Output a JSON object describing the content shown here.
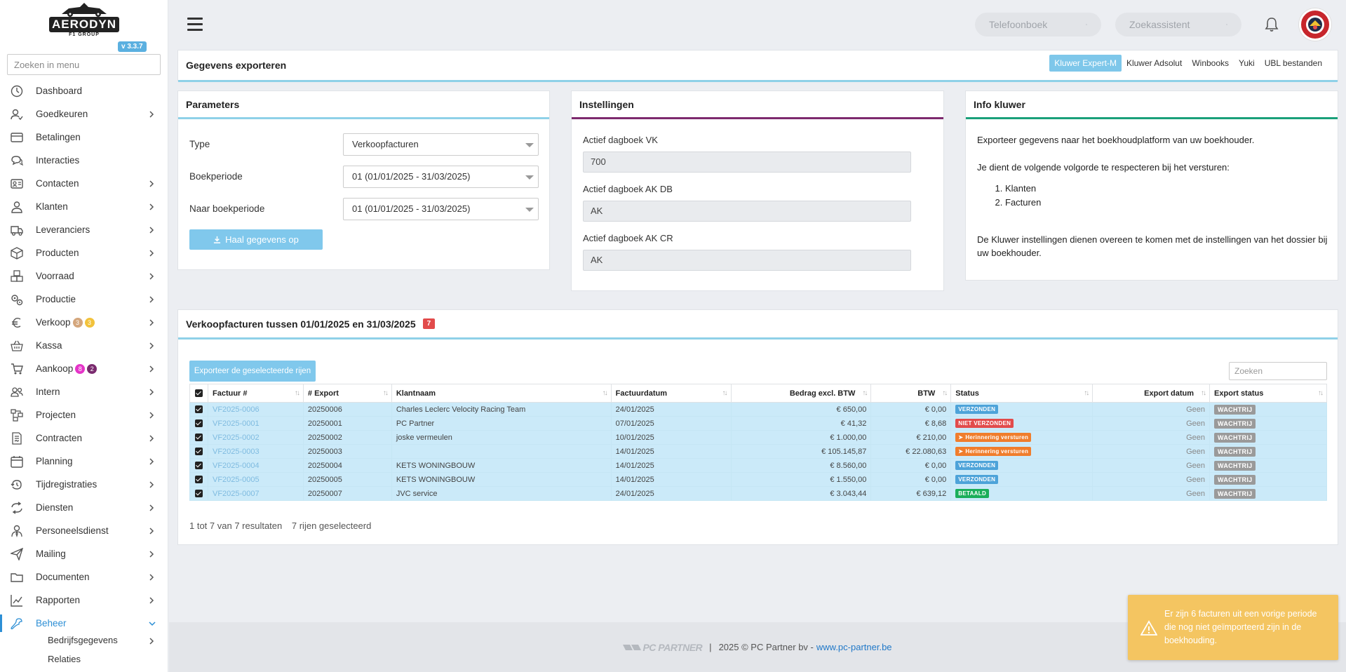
{
  "sidebar": {
    "logo_text": "AERODYN",
    "logo_sub": "F1 GROUP",
    "version": "v 3.3.7",
    "search_placeholder": "Zoeken in menu",
    "items": [
      {
        "label": "Dashboard",
        "icon": "dashboard-icon",
        "chevron": false
      },
      {
        "label": "Goedkeuren",
        "icon": "user-check-icon",
        "chevron": true
      },
      {
        "label": "Betalingen",
        "icon": "credit-card-icon",
        "chevron": false
      },
      {
        "label": "Interacties",
        "icon": "chat-icon",
        "chevron": false
      },
      {
        "label": "Contacten",
        "icon": "contact-card-icon",
        "chevron": true
      },
      {
        "label": "Klanten",
        "icon": "user-icon",
        "chevron": true
      },
      {
        "label": "Leveranciers",
        "icon": "truck-icon",
        "chevron": true
      },
      {
        "label": "Producten",
        "icon": "box-icon",
        "chevron": true
      },
      {
        "label": "Voorraad",
        "icon": "boxes-icon",
        "chevron": true
      },
      {
        "label": "Productie",
        "icon": "gears-icon",
        "chevron": true
      },
      {
        "label": "Verkoop",
        "icon": "euro-icon",
        "chevron": true,
        "badges": [
          {
            "value": "3",
            "color": "#d4a67c"
          },
          {
            "value": "3",
            "color": "#f2c23b"
          }
        ]
      },
      {
        "label": "Kassa",
        "icon": "basket-icon",
        "chevron": true
      },
      {
        "label": "Aankoop",
        "icon": "cart-icon",
        "chevron": true,
        "badges": [
          {
            "value": "8",
            "color": "#e534c8"
          },
          {
            "value": "2",
            "color": "#7a2a6e"
          }
        ]
      },
      {
        "label": "Intern",
        "icon": "users-icon",
        "chevron": true
      },
      {
        "label": "Projecten",
        "icon": "project-icon",
        "chevron": true
      },
      {
        "label": "Contracten",
        "icon": "contract-icon",
        "chevron": true
      },
      {
        "label": "Planning",
        "icon": "calendar-icon",
        "chevron": true
      },
      {
        "label": "Tijdregistraties",
        "icon": "history-icon",
        "chevron": true
      },
      {
        "label": "Diensten",
        "icon": "refresh-icon",
        "chevron": true
      },
      {
        "label": "Personeelsdienst",
        "icon": "person-tie-icon",
        "chevron": true
      },
      {
        "label": "Mailing",
        "icon": "send-icon",
        "chevron": true
      },
      {
        "label": "Documenten",
        "icon": "folder-icon",
        "chevron": true
      },
      {
        "label": "Rapporten",
        "icon": "chart-line-icon",
        "chevron": true
      },
      {
        "label": "Beheer",
        "icon": "wrench-icon",
        "chevron": true,
        "active": true
      }
    ],
    "subitems": [
      {
        "label": "Bedrijfsgegevens"
      },
      {
        "label": "Relaties"
      }
    ]
  },
  "topbar": {
    "search1_placeholder": "Telefoonboek",
    "search2_placeholder": "Zoekassistent"
  },
  "export": {
    "title": "Gegevens exporteren",
    "tabs": [
      "Kluwer Expert-M",
      "Kluwer Adsolut",
      "Winbooks",
      "Yuki",
      "UBL bestanden"
    ],
    "active_tab": 0
  },
  "parameters": {
    "title": "Parameters",
    "type_label": "Type",
    "type_value": "Verkoopfacturen",
    "boekperiode_label": "Boekperiode",
    "boekperiode_value": "01 (01/01/2025 - 31/03/2025)",
    "naar_label": "Naar boekperiode",
    "naar_value": "01 (01/01/2025 - 31/03/2025)",
    "button": "Haal gegevens op"
  },
  "instellingen": {
    "title": "Instellingen",
    "fields": [
      {
        "label": "Actief dagboek VK",
        "value": "700"
      },
      {
        "label": "Actief dagboek AK DB",
        "value": "AK"
      },
      {
        "label": "Actief dagboek AK CR",
        "value": "AK"
      }
    ]
  },
  "info": {
    "title": "Info kluwer",
    "p1": "Exporteer gegevens naar het boekhoudplatform van uw boekhouder.",
    "p2": "Je dient de volgende volgorde te respecteren bij het versturen:",
    "list": [
      "Klanten",
      "Facturen"
    ],
    "p3": "De Kluwer instellingen dienen overeen te komen met de instellingen van het dossier bij uw boekhouder."
  },
  "invoices": {
    "title": "Verkoopfacturen tussen 01/01/2025 en 31/03/2025",
    "count": "7",
    "export_button": "Exporteer de geselecteerde rijen",
    "search_placeholder": "Zoeken",
    "columns": [
      "Factuur #",
      "# Export",
      "Klantnaam",
      "Factuurdatum",
      "Bedrag excl. BTW",
      "BTW",
      "Status",
      "Export datum",
      "Export status"
    ],
    "rows": [
      {
        "factuur": "VF2025-0006",
        "export": "20250006",
        "klant": "Charles Leclerc Velocity Racing Team",
        "datum": "24/01/2025",
        "bedrag": "€ 650,00",
        "btw": "€ 0,00",
        "status": "VERZONDEN",
        "status_type": "sent",
        "export_datum": "Geen",
        "export_status": "WACHTRIJ"
      },
      {
        "factuur": "VF2025-0001",
        "export": "20250001",
        "klant": "PC Partner",
        "datum": "07/01/2025",
        "bedrag": "€ 41,32",
        "btw": "€ 8,68",
        "status": "NIET VERZONDEN",
        "status_type": "notsent",
        "export_datum": "Geen",
        "export_status": "WACHTRIJ"
      },
      {
        "factuur": "VF2025-0002",
        "export": "20250002",
        "klant": "joske vermeulen",
        "datum": "10/01/2025",
        "bedrag": "€ 1.000,00",
        "btw": "€ 210,00",
        "status": "Herinnering versturen",
        "status_type": "remind",
        "export_datum": "Geen",
        "export_status": "WACHTRIJ"
      },
      {
        "factuur": "VF2025-0003",
        "export": "20250003",
        "klant": "",
        "datum": "14/01/2025",
        "bedrag": "€ 105.145,87",
        "btw": "€ 22.080,63",
        "status": "Herinnering versturen",
        "status_type": "remind",
        "export_datum": "Geen",
        "export_status": "WACHTRIJ"
      },
      {
        "factuur": "VF2025-0004",
        "export": "20250004",
        "klant": "KETS WONINGBOUW",
        "datum": "14/01/2025",
        "bedrag": "€ 8.560,00",
        "btw": "€ 0,00",
        "status": "VERZONDEN",
        "status_type": "sent",
        "export_datum": "Geen",
        "export_status": "WACHTRIJ"
      },
      {
        "factuur": "VF2025-0005",
        "export": "20250005",
        "klant": "KETS WONINGBOUW",
        "datum": "14/01/2025",
        "bedrag": "€ 1.550,00",
        "btw": "€ 0,00",
        "status": "VERZONDEN",
        "status_type": "sent",
        "export_datum": "Geen",
        "export_status": "WACHTRIJ"
      },
      {
        "factuur": "VF2025-0007",
        "export": "20250007",
        "klant": "JVC service",
        "datum": "24/01/2025",
        "bedrag": "€ 3.043,44",
        "btw": "€ 639,12",
        "status": "BETAALD",
        "status_type": "paid",
        "export_datum": "Geen",
        "export_status": "WACHTRIJ"
      }
    ],
    "footer_range": "1 tot 7 van 7 resultaten",
    "footer_selected": "7 rijen geselecteerd"
  },
  "footer": {
    "logo": "PC PARTNER",
    "copyright": "2025 © PC Partner bv - ",
    "link": "www.pc-partner.be"
  },
  "toast": {
    "message": "Er zijn 6 facturen uit een vorige periode die nog niet geïmporteerd zijn in de boekhouding."
  }
}
